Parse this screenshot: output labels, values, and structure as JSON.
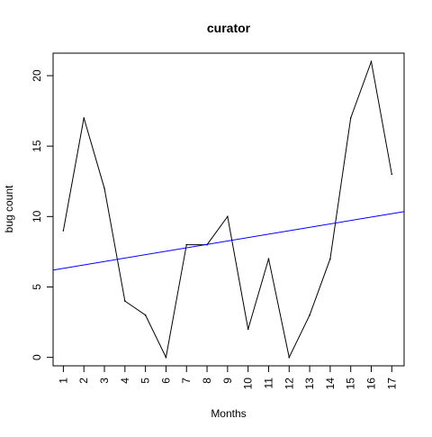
{
  "chart_data": {
    "type": "line",
    "title": "curator",
    "xlabel": "Months",
    "ylabel": "bug count",
    "x": [
      1,
      2,
      3,
      4,
      5,
      6,
      7,
      8,
      9,
      10,
      11,
      12,
      13,
      14,
      15,
      16,
      17
    ],
    "x_ticks": [
      "1",
      "2",
      "3",
      "4",
      "5",
      "6",
      "7",
      "8",
      "9",
      "10",
      "11",
      "12",
      "13",
      "14",
      "15",
      "16",
      "17"
    ],
    "y_ticks": [
      "0",
      "5",
      "10",
      "15",
      "20"
    ],
    "xlim": [
      0.5,
      17.6
    ],
    "ylim": [
      -0.6,
      21.6
    ],
    "grid": false,
    "series": [
      {
        "kind": "line",
        "color": "#000000",
        "values": [
          9,
          17,
          12,
          4,
          3,
          0,
          8,
          8,
          10,
          2,
          7,
          0,
          3,
          7,
          17,
          21,
          13
        ]
      },
      {
        "kind": "trend",
        "color": "#0000ff",
        "x": [
          0.5,
          17.6
        ],
        "values": [
          6.2,
          10.35
        ]
      }
    ]
  }
}
